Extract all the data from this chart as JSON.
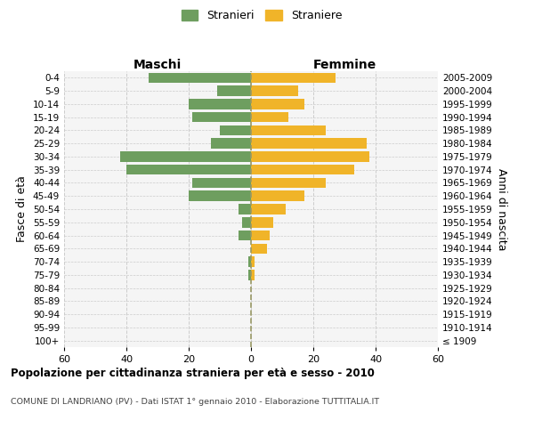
{
  "age_groups": [
    "100+",
    "95-99",
    "90-94",
    "85-89",
    "80-84",
    "75-79",
    "70-74",
    "65-69",
    "60-64",
    "55-59",
    "50-54",
    "45-49",
    "40-44",
    "35-39",
    "30-34",
    "25-29",
    "20-24",
    "15-19",
    "10-14",
    "5-9",
    "0-4"
  ],
  "birth_years": [
    "≤ 1909",
    "1910-1914",
    "1915-1919",
    "1920-1924",
    "1925-1929",
    "1930-1934",
    "1935-1939",
    "1940-1944",
    "1945-1949",
    "1950-1954",
    "1955-1959",
    "1960-1964",
    "1965-1969",
    "1970-1974",
    "1975-1979",
    "1980-1984",
    "1985-1989",
    "1990-1994",
    "1995-1999",
    "2000-2004",
    "2005-2009"
  ],
  "males": [
    0,
    0,
    0,
    0,
    0,
    1,
    1,
    0,
    4,
    3,
    4,
    20,
    19,
    40,
    42,
    13,
    10,
    19,
    20,
    11,
    33
  ],
  "females": [
    0,
    0,
    0,
    0,
    0,
    1,
    1,
    5,
    6,
    7,
    11,
    17,
    24,
    33,
    38,
    37,
    24,
    12,
    17,
    15,
    27
  ],
  "male_color": "#6e9e5f",
  "female_color": "#f0b429",
  "grid_color": "#cccccc",
  "center_line_color": "#999966",
  "title": "Popolazione per cittadinanza straniera per età e sesso - 2010",
  "subtitle": "COMUNE DI LANDRIANO (PV) - Dati ISTAT 1° gennaio 2010 - Elaborazione TUTTITALIA.IT",
  "xlabel_left": "Maschi",
  "xlabel_right": "Femmine",
  "ylabel_left": "Fasce di età",
  "ylabel_right": "Anni di nascita",
  "legend_male": "Stranieri",
  "legend_female": "Straniere",
  "xlim": 60,
  "background_color": "#ffffff",
  "plot_bg_color": "#f5f5f5"
}
